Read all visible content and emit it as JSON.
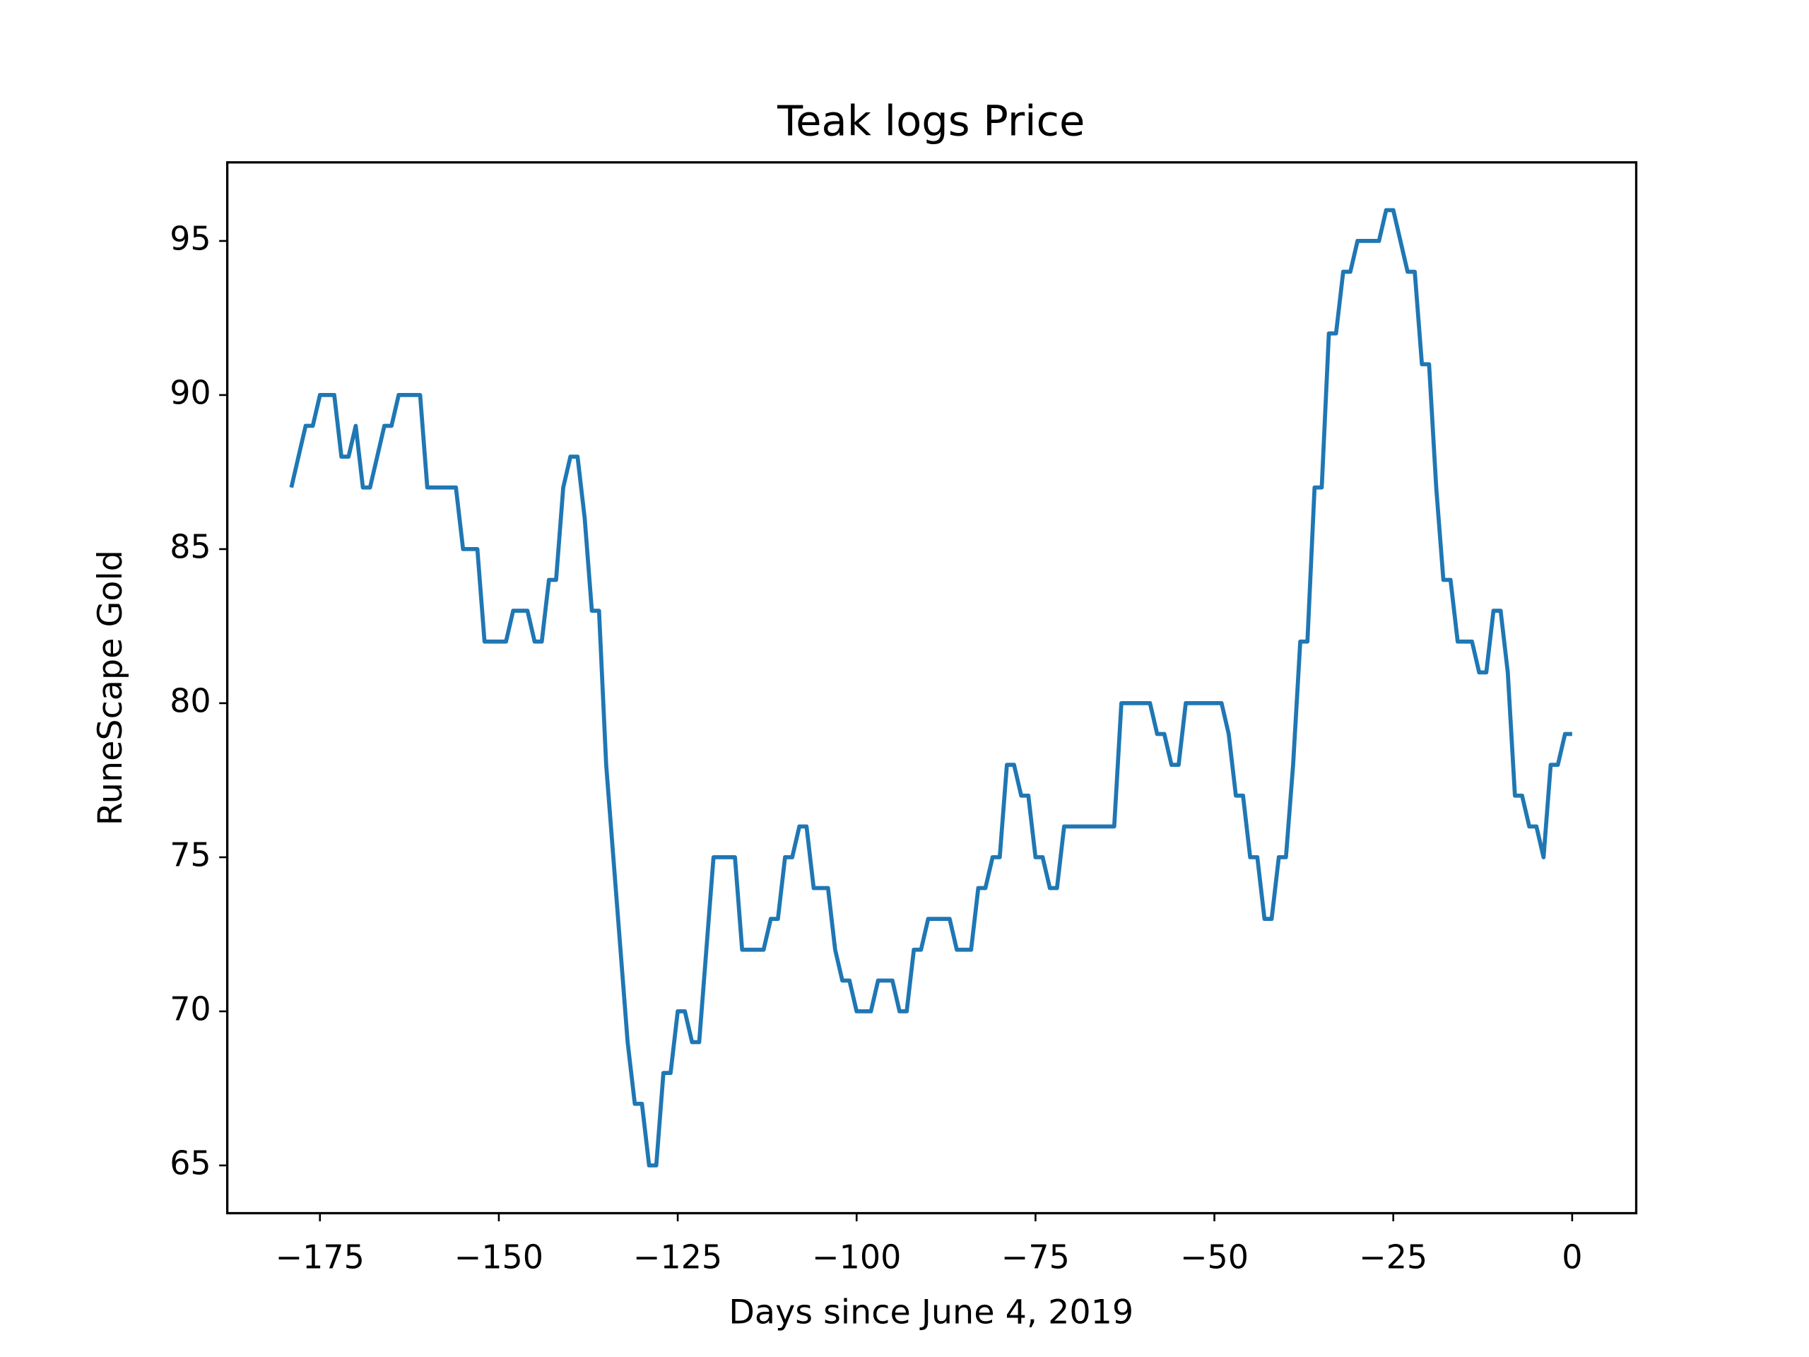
{
  "chart_data": {
    "type": "line",
    "title": "Teak logs Price",
    "xlabel": "Days since June 4, 2019",
    "ylabel": "RuneScape Gold",
    "x": [
      -179,
      -178,
      -177,
      -176,
      -175,
      -174,
      -173,
      -172,
      -171,
      -170,
      -169,
      -168,
      -167,
      -166,
      -165,
      -164,
      -163,
      -162,
      -161,
      -160,
      -159,
      -158,
      -157,
      -156,
      -155,
      -154,
      -153,
      -152,
      -151,
      -150,
      -149,
      -148,
      -147,
      -146,
      -145,
      -144,
      -143,
      -142,
      -141,
      -140,
      -139,
      -138,
      -137,
      -136,
      -135,
      -134,
      -133,
      -132,
      -131,
      -130,
      -129,
      -128,
      -127,
      -126,
      -125,
      -124,
      -123,
      -122,
      -121,
      -120,
      -119,
      -118,
      -117,
      -116,
      -115,
      -114,
      -113,
      -112,
      -111,
      -110,
      -109,
      -108,
      -107,
      -106,
      -105,
      -104,
      -103,
      -102,
      -101,
      -100,
      -99,
      -98,
      -97,
      -96,
      -95,
      -94,
      -93,
      -92,
      -91,
      -90,
      -89,
      -88,
      -87,
      -86,
      -85,
      -84,
      -83,
      -82,
      -81,
      -80,
      -79,
      -78,
      -77,
      -76,
      -75,
      -74,
      -73,
      -72,
      -71,
      -70,
      -69,
      -68,
      -67,
      -66,
      -65,
      -64,
      -63,
      -62,
      -61,
      -60,
      -59,
      -58,
      -57,
      -56,
      -55,
      -54,
      -53,
      -52,
      -51,
      -50,
      -49,
      -48,
      -47,
      -46,
      -45,
      -44,
      -43,
      -42,
      -41,
      -40,
      -39,
      -38,
      -37,
      -36,
      -35,
      -34,
      -33,
      -32,
      -31,
      -30,
      -29,
      -28,
      -27,
      -26,
      -25,
      -24,
      -23,
      -22,
      -21,
      -20,
      -19,
      -18,
      -17,
      -16,
      -15,
      -14,
      -13,
      -12,
      -11,
      -10,
      -9,
      -8,
      -7,
      -6,
      -5,
      -4,
      -3,
      -2,
      -1,
      0
    ],
    "series": [
      {
        "color": "#1f77b4",
        "values": [
          87,
          88,
          89,
          89,
          90,
          90,
          90,
          88,
          88,
          89,
          87,
          87,
          88,
          89,
          89,
          90,
          90,
          90,
          90,
          87,
          87,
          87,
          87,
          87,
          85,
          85,
          85,
          82,
          82,
          82,
          82,
          83,
          83,
          83,
          82,
          82,
          84,
          84,
          87,
          88,
          88,
          86,
          83,
          83,
          78,
          75,
          72,
          69,
          67,
          67,
          65,
          65,
          68,
          68,
          70,
          70,
          69,
          69,
          72,
          75,
          75,
          75,
          75,
          72,
          72,
          72,
          72,
          73,
          73,
          75,
          75,
          76,
          76,
          74,
          74,
          74,
          72,
          71,
          71,
          70,
          70,
          70,
          71,
          71,
          71,
          70,
          70,
          72,
          72,
          73,
          73,
          73,
          73,
          72,
          72,
          72,
          74,
          74,
          75,
          75,
          78,
          78,
          77,
          77,
          75,
          75,
          74,
          74,
          76,
          76,
          76,
          76,
          76,
          76,
          76,
          76,
          80,
          80,
          80,
          80,
          80,
          79,
          79,
          78,
          78,
          80,
          80,
          80,
          80,
          80,
          80,
          79,
          77,
          77,
          75,
          75,
          73,
          73,
          75,
          75,
          78,
          82,
          82,
          87,
          87,
          92,
          92,
          94,
          94,
          95,
          95,
          95,
          95,
          96,
          96,
          95,
          94,
          94,
          91,
          91,
          87,
          84,
          84,
          82,
          82,
          82,
          81,
          81,
          83,
          83,
          81,
          77,
          77,
          76,
          76,
          75,
          78,
          78,
          79,
          79
        ]
      }
    ],
    "xlim": [
      -187.95,
      8.95
    ],
    "ylim": [
      63.45,
      97.55
    ],
    "xticks": [
      {
        "value": -175,
        "label": "−175"
      },
      {
        "value": -150,
        "label": "−150"
      },
      {
        "value": -125,
        "label": "−125"
      },
      {
        "value": -100,
        "label": "−100"
      },
      {
        "value": -75,
        "label": "−75"
      },
      {
        "value": -50,
        "label": "−50"
      },
      {
        "value": -25,
        "label": "−25"
      },
      0
    ],
    "yticks": [
      65,
      70,
      75,
      80,
      85,
      90,
      95
    ]
  }
}
